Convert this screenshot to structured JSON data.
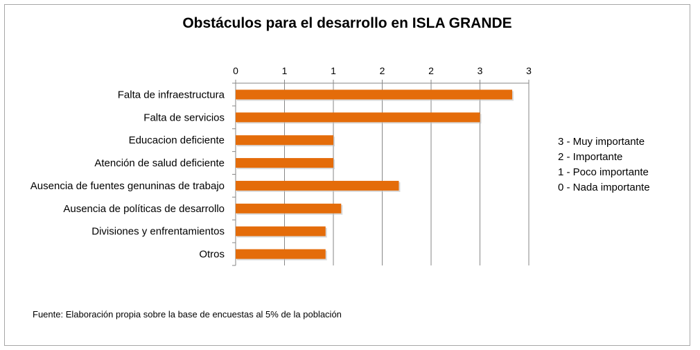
{
  "chart_data": {
    "type": "bar",
    "orientation": "horizontal",
    "title": "Obstáculos para el desarrollo en ISLA GRANDE",
    "categories": [
      "Falta de infraestructura",
      "Falta de servicios",
      "Educacion deficiente",
      "Atención de salud deficiente",
      "Ausencia de fuentes genuninas de trabajo",
      "Ausencia de políticas de desarrollo",
      "Divisiones y enfrentamientos",
      "Otros"
    ],
    "values": [
      2.83,
      2.5,
      1.0,
      1.0,
      1.67,
      1.08,
      0.92,
      0.92
    ],
    "xlim": [
      0,
      3
    ],
    "x_ticks": [
      0,
      0.5,
      1,
      1.5,
      2,
      2.5,
      3
    ],
    "x_tick_labels": [
      "0",
      "1",
      "1",
      "2",
      "2",
      "3",
      "3"
    ],
    "x_axis_position": "top",
    "grid": true,
    "bar_color": "#e46c0a",
    "grid_color": "#868686",
    "legend_notes": [
      "3 - Muy importante",
      "2 - Importante",
      "1 - Poco importante",
      "0 - Nada importante"
    ],
    "source": "Fuente: Elaboración propia sobre la base de encuestas al  5%  de la población"
  }
}
